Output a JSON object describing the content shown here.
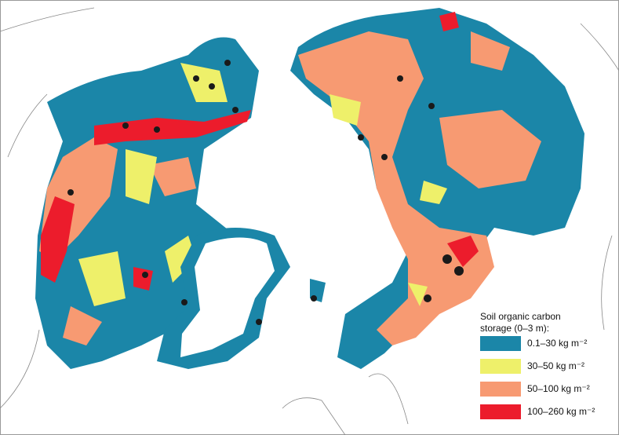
{
  "legend": {
    "title_lines": [
      "Soil organic carbon",
      "storage (0–3 m):"
    ],
    "items": [
      {
        "label": "0.1–30 kg m⁻²",
        "color": "#1b86a8"
      },
      {
        "label": "30–50 kg m⁻²",
        "color": "#eef06a"
      },
      {
        "label": "50–100 kg m⁻²",
        "color": "#f79a72"
      },
      {
        "label": "100–260 kg m⁻²",
        "color": "#ec1c2c"
      }
    ]
  }
}
